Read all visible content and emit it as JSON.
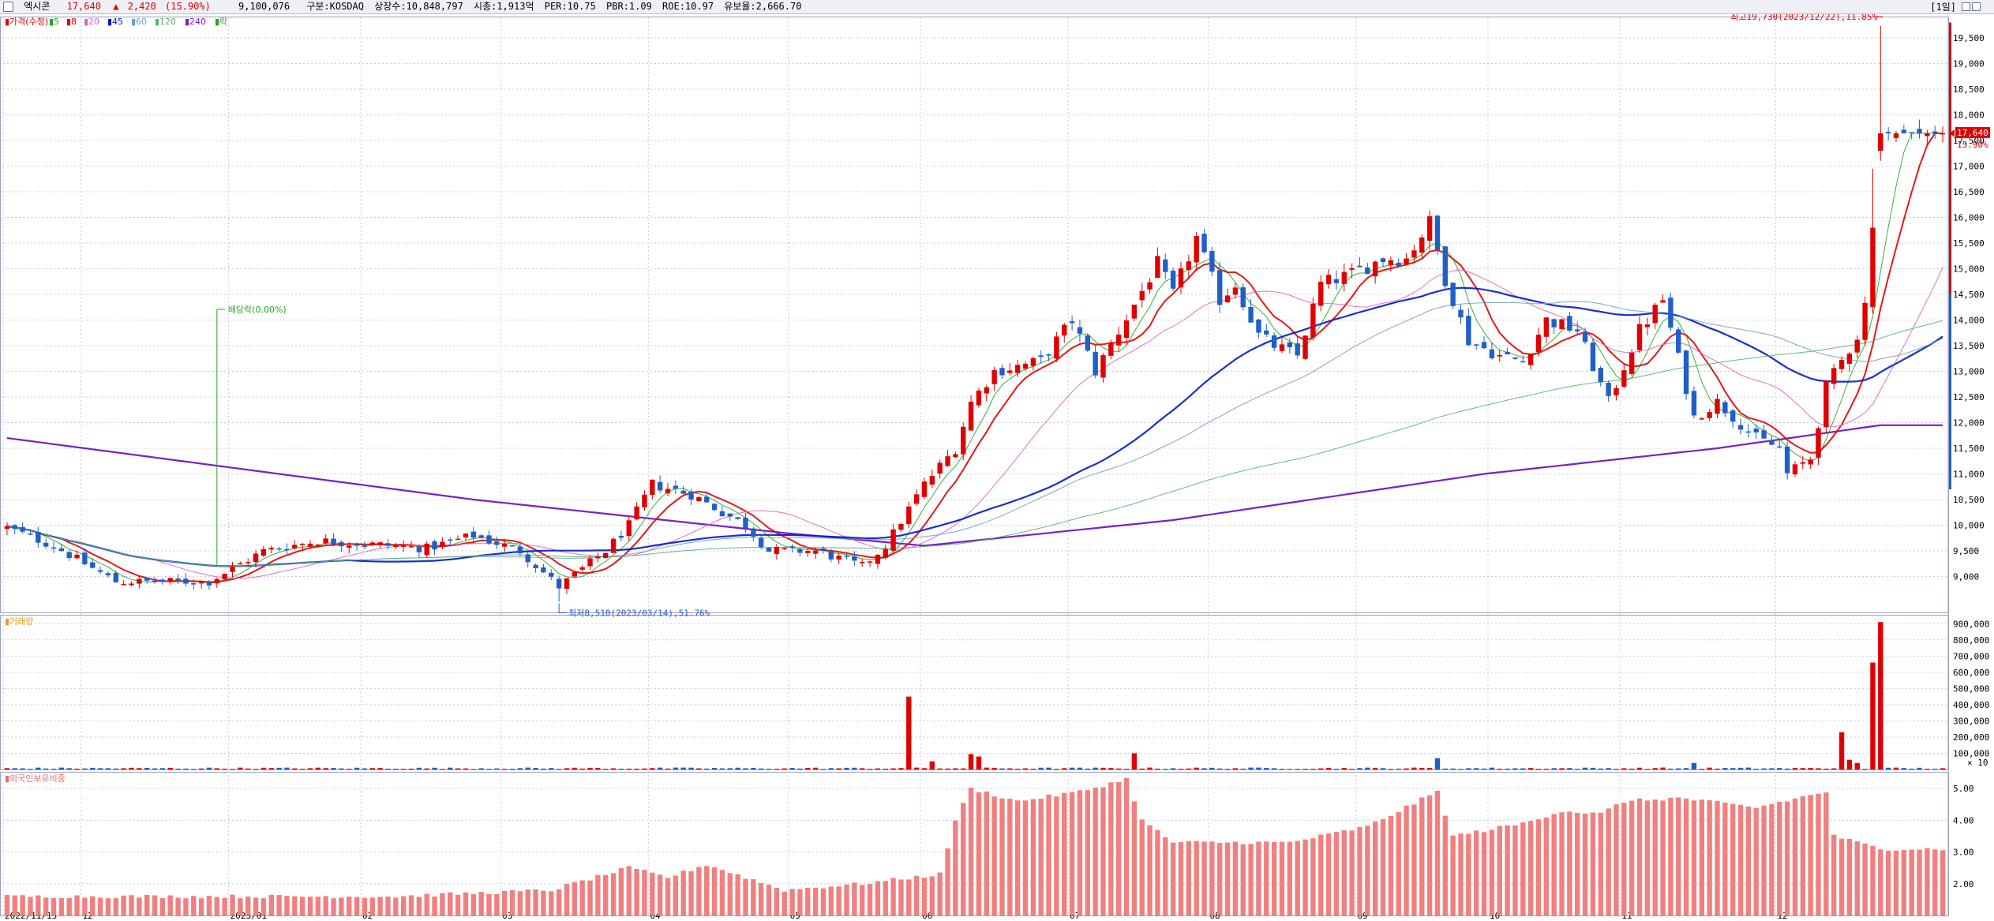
{
  "header": {
    "name": "엑시콘",
    "price": "17,640",
    "change_arrow": "▲",
    "change": "2,420",
    "change_pct": "(15.90%)",
    "volume": "9,100,076",
    "market": "구분:KOSDAQ",
    "shares": "상장수:10,848,797",
    "mcap": "시총:1,913억",
    "per": "PER:10.75",
    "pbr": "PBR:1.09",
    "roe": "ROE:10.97",
    "float": "유보율:2,666.70",
    "period": "[1일]"
  },
  "legend": {
    "price_label": "가격(수정)",
    "ma": [
      {
        "label": "5",
        "color": "#21a821"
      },
      {
        "label": "8",
        "color": "#e00000"
      },
      {
        "label": "20",
        "color": "#e060c0"
      },
      {
        "label": "45",
        "color": "#0018c8"
      },
      {
        "label": "60",
        "color": "#6aa0c0"
      },
      {
        "label": "120",
        "color": "#58b070"
      },
      {
        "label": "240",
        "color": "#7a1fc8"
      },
      {
        "label": "락",
        "color": "#21a821"
      }
    ],
    "volume_label": "거래량",
    "foreign_label": "외국인보유비중"
  },
  "colors": {
    "up": "#e00000",
    "down": "#1f5fc8",
    "ratio_bar": "#f08080",
    "grid": "#c8cbe0"
  },
  "annotations": {
    "high": "최고19,730(2023/12/22),11.85%",
    "low": "최저8,510(2023/03/14),51.76%",
    "dividend": "배당락(0.00%)",
    "current_price": "17,640",
    "current_pct": "15.90%",
    "vol_unit": "× 10"
  },
  "chart_data": [
    {
      "type": "candlestick",
      "title": "가격(수정)",
      "n_candles": 250,
      "ylim": [
        8300,
        19900
      ],
      "yticks": [
        9000,
        9500,
        10000,
        10500,
        11000,
        11500,
        12000,
        12500,
        13000,
        13500,
        14000,
        14500,
        15000,
        15500,
        16000,
        16500,
        17000,
        17500,
        18000,
        18500,
        19000,
        19500
      ],
      "ytick_labels": [
        "9,000",
        "9,500",
        "10,000",
        "10,500",
        "11,000",
        "11,500",
        "12,000",
        "12,500",
        "13,000",
        "13,500",
        "14,000",
        "14,500",
        "15,000",
        "15,500",
        "16,000",
        "16,500",
        "17,000",
        "17,500",
        "18,000",
        "18,500",
        "19,000",
        "19,500"
      ],
      "x_labels": [
        {
          "i": 0,
          "t": "2022/11/15"
        },
        {
          "i": 10,
          "t": "12"
        },
        {
          "i": 29,
          "t": "2023/01"
        },
        {
          "i": 46,
          "t": "02"
        },
        {
          "i": 64,
          "t": "03"
        },
        {
          "i": 83,
          "t": "04"
        },
        {
          "i": 101,
          "t": "05"
        },
        {
          "i": 118,
          "t": "06"
        },
        {
          "i": 137,
          "t": "07"
        },
        {
          "i": 155,
          "t": "08"
        },
        {
          "i": 174,
          "t": "09"
        },
        {
          "i": 191,
          "t": "10"
        },
        {
          "i": 208,
          "t": "11"
        },
        {
          "i": 228,
          "t": "12"
        }
      ],
      "close_anchors": [
        [
          0,
          9950
        ],
        [
          6,
          9600
        ],
        [
          14,
          8900
        ],
        [
          26,
          8900
        ],
        [
          33,
          9500
        ],
        [
          40,
          9700
        ],
        [
          54,
          9550
        ],
        [
          60,
          9800
        ],
        [
          66,
          9500
        ],
        [
          71,
          8800
        ],
        [
          77,
          9500
        ],
        [
          80,
          10000
        ],
        [
          83,
          10800
        ],
        [
          88,
          10600
        ],
        [
          95,
          10000
        ],
        [
          98,
          9500
        ],
        [
          104,
          9500
        ],
        [
          110,
          9200
        ],
        [
          113,
          9600
        ],
        [
          118,
          10800
        ],
        [
          122,
          11500
        ],
        [
          124,
          12400
        ],
        [
          127,
          13000
        ],
        [
          133,
          13200
        ],
        [
          137,
          14000
        ],
        [
          140,
          13000
        ],
        [
          145,
          14300
        ],
        [
          148,
          15100
        ],
        [
          150,
          14500
        ],
        [
          153,
          15600
        ],
        [
          156,
          14400
        ],
        [
          158,
          14700
        ],
        [
          161,
          13700
        ],
        [
          163,
          13500
        ],
        [
          166,
          13300
        ],
        [
          169,
          14700
        ],
        [
          173,
          14900
        ],
        [
          177,
          15200
        ],
        [
          180,
          15200
        ],
        [
          183,
          15900
        ],
        [
          185,
          14800
        ],
        [
          188,
          13600
        ],
        [
          192,
          13300
        ],
        [
          195,
          13200
        ],
        [
          198,
          14000
        ],
        [
          202,
          13800
        ],
        [
          206,
          12400
        ],
        [
          210,
          13800
        ],
        [
          213,
          14400
        ],
        [
          217,
          12100
        ],
        [
          220,
          12400
        ],
        [
          225,
          11700
        ],
        [
          228,
          11500
        ],
        [
          229,
          11000
        ],
        [
          232,
          11300
        ],
        [
          234,
          12700
        ],
        [
          236,
          13200
        ],
        [
          238,
          13700
        ],
        [
          239,
          14300
        ],
        [
          240,
          15800
        ],
        [
          241,
          17640
        ]
      ],
      "moving_averages": [
        {
          "name": "5",
          "window": 5,
          "color": "#21a821"
        },
        {
          "name": "8",
          "window": 8,
          "color": "#e00000"
        },
        {
          "name": "20",
          "window": 20,
          "color": "#e060c0"
        },
        {
          "name": "45",
          "window": 45,
          "color": "#0018c8"
        },
        {
          "name": "60",
          "window": 60,
          "color": "#6aa0c0"
        },
        {
          "name": "120",
          "window": 120,
          "color": "#58b070"
        },
        {
          "name": "240",
          "window": 240,
          "color": "#7a1fc8"
        }
      ],
      "long_ma_240": [
        [
          0,
          11700
        ],
        [
          60,
          10500
        ],
        [
          100,
          9850
        ],
        [
          118,
          9600
        ],
        [
          150,
          10100
        ],
        [
          190,
          11000
        ],
        [
          220,
          11500
        ],
        [
          241,
          11950
        ]
      ],
      "high": {
        "index": 241,
        "value": 19730,
        "date": "2023/12/22"
      },
      "low": {
        "index": 71,
        "value": 8510,
        "date": "2023/03/14"
      },
      "dividend_index": 27
    },
    {
      "type": "bar",
      "title": "거래량",
      "ylim": [
        0,
        950000
      ],
      "yticks": [
        100000,
        200000,
        300000,
        400000,
        500000,
        600000,
        700000,
        800000,
        900000
      ],
      "ytick_labels": [
        "100,000",
        "200,000",
        "300,000",
        "400,000",
        "500,000",
        "600,000",
        "700,000",
        "800,000",
        "900,000"
      ],
      "spikes": [
        [
          116,
          450000
        ],
        [
          119,
          50000
        ],
        [
          124,
          95000
        ],
        [
          125,
          80000
        ],
        [
          145,
          100000
        ],
        [
          184,
          70000
        ],
        [
          217,
          40000
        ],
        [
          236,
          230000
        ],
        [
          237,
          60000
        ],
        [
          238,
          40000
        ],
        [
          240,
          660000
        ],
        [
          241,
          910000
        ]
      ],
      "unit_note": "× 10"
    },
    {
      "type": "bar",
      "title": "외국인보유비중",
      "ylim": [
        1.0,
        5.5
      ],
      "yticks": [
        2.0,
        3.0,
        4.0,
        5.0
      ],
      "ytick_labels": [
        "2.00",
        "3.00",
        "4.00",
        "5.00"
      ],
      "anchors": [
        [
          0,
          1.6
        ],
        [
          50,
          1.6
        ],
        [
          60,
          1.7
        ],
        [
          70,
          1.8
        ],
        [
          80,
          2.5
        ],
        [
          85,
          2.2
        ],
        [
          90,
          2.6
        ],
        [
          95,
          2.2
        ],
        [
          100,
          1.8
        ],
        [
          110,
          2.0
        ],
        [
          120,
          2.3
        ],
        [
          122,
          4.0
        ],
        [
          124,
          5.0
        ],
        [
          130,
          4.6
        ],
        [
          138,
          4.9
        ],
        [
          144,
          5.3
        ],
        [
          146,
          4.0
        ],
        [
          150,
          3.3
        ],
        [
          165,
          3.3
        ],
        [
          175,
          3.8
        ],
        [
          184,
          4.9
        ],
        [
          186,
          3.5
        ],
        [
          195,
          3.9
        ],
        [
          200,
          4.3
        ],
        [
          205,
          4.2
        ],
        [
          208,
          4.6
        ],
        [
          215,
          4.7
        ],
        [
          225,
          4.4
        ],
        [
          234,
          4.9
        ],
        [
          235,
          3.5
        ],
        [
          241,
          3.1
        ]
      ]
    }
  ]
}
